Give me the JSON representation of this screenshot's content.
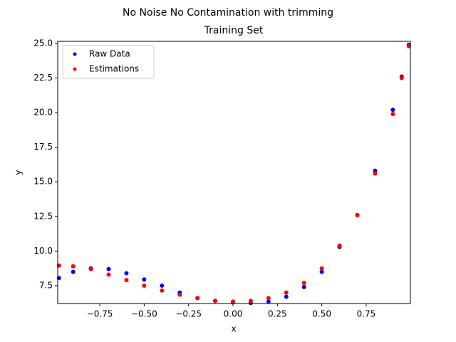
{
  "chart_data": {
    "type": "scatter",
    "title": "No Noise No Contamination with trimming",
    "subtitle": "Training Set",
    "x_label": "x",
    "y_label": "y",
    "xlim": [
      -0.987,
      0.999
    ],
    "ylim": [
      6.21,
      25.15
    ],
    "xticks": [
      {
        "value": -0.75,
        "label": "−0.75"
      },
      {
        "value": -0.5,
        "label": "−0.50"
      },
      {
        "value": -0.25,
        "label": "−0.25"
      },
      {
        "value": 0,
        "label": "0.00"
      },
      {
        "value": 0.25,
        "label": "0.25"
      },
      {
        "value": 0.5,
        "label": "0.50"
      },
      {
        "value": 0.75,
        "label": "0.75"
      }
    ],
    "yticks": [
      7.5,
      {
        "value": 10,
        "label": "10.0"
      },
      12.5,
      {
        "value": 15,
        "label": "15.0"
      },
      17.5,
      {
        "value": 20,
        "label": "20.0"
      },
      22.5,
      {
        "value": 25,
        "label": "25.0"
      }
    ],
    "legend": "upper left",
    "series": [
      {
        "name": "Raw Data",
        "color": "#0000ff",
        "x": [
          -0.98,
          -0.9,
          -0.8,
          -0.7,
          -0.6,
          -0.5,
          -0.4,
          -0.3,
          -0.2,
          -0.1,
          0,
          0.1,
          0.2,
          0.3,
          0.4,
          0.5,
          0.6,
          0.7,
          0.8,
          0.9,
          0.95,
          0.99
        ],
        "values": [
          8.05,
          8.5,
          8.75,
          8.7,
          8.4,
          7.95,
          7.5,
          7.0,
          6.6,
          6.4,
          6.3,
          6.25,
          6.35,
          6.7,
          7.4,
          8.5,
          10.3,
          12.6,
          15.8,
          20.2,
          22.6,
          24.9
        ]
      },
      {
        "name": "Estimations",
        "color": "#ff0000",
        "x": [
          -0.98,
          -0.9,
          -0.8,
          -0.7,
          -0.6,
          -0.5,
          -0.4,
          -0.3,
          -0.2,
          -0.1,
          0,
          0.1,
          0.2,
          0.3,
          0.4,
          0.5,
          0.6,
          0.7,
          0.8,
          0.9,
          0.95,
          0.99
        ],
        "values": [
          8.95,
          8.9,
          8.7,
          8.3,
          7.9,
          7.5,
          7.15,
          6.85,
          6.6,
          6.4,
          6.35,
          6.4,
          6.6,
          7.0,
          7.7,
          8.75,
          10.4,
          12.6,
          15.6,
          19.9,
          22.5,
          24.8
        ]
      }
    ]
  }
}
